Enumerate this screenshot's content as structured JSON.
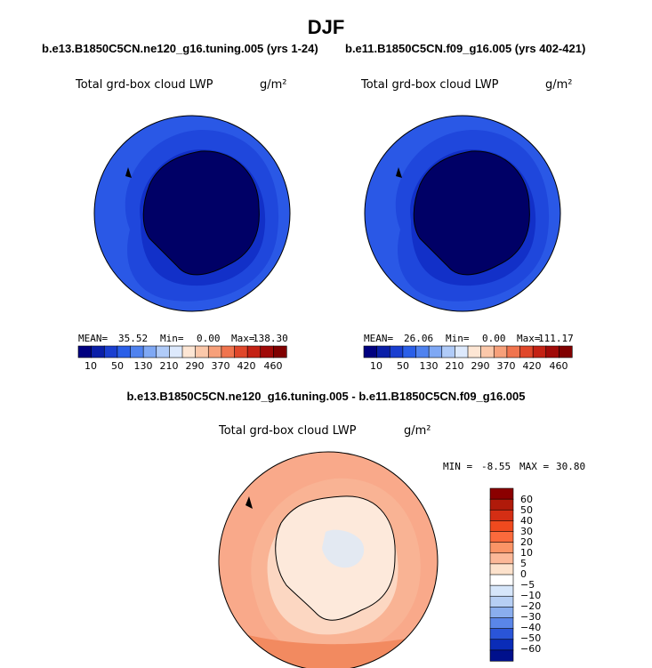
{
  "title": "DJF",
  "panels": [
    {
      "case": "b.e13.B1850C5CN.ne120_g16.tuning.005 (yrs 1-24)",
      "variable": "Total grd-box cloud LWP",
      "units": "g/m²",
      "mean_label": "MEAN=",
      "mean": "35.52",
      "min_label": "Min=",
      "min": "0.00",
      "max_label": "Max=",
      "max": "138.30"
    },
    {
      "case": "b.e11.B1850C5CN.f09_g16.005 (yrs 402-421)",
      "variable": "Total grd-box cloud LWP",
      "units": "g/m²",
      "mean_label": "MEAN=",
      "mean": "26.06",
      "min_label": "Min=",
      "min": "0.00",
      "max_label": "Max=",
      "max": "111.17"
    }
  ],
  "abs_colorbar": {
    "levels": [
      "10",
      "50",
      "130",
      "210",
      "290",
      "370",
      "420",
      "460"
    ],
    "colors": [
      "#000080",
      "#0a1fa8",
      "#1a3fd0",
      "#2a5fe8",
      "#4f82ef",
      "#7fa8f4",
      "#b0cbf8",
      "#dde9fc",
      "#fde6d4",
      "#fbc8aa",
      "#f7a07a",
      "#f0744e",
      "#e0472a",
      "#c42214",
      "#a00a08",
      "#800000"
    ]
  },
  "diff_panel": {
    "case": "b.e13.B1850C5CN.ne120_g16.tuning.005 - b.e11.B1850C5CN.f09_g16.005",
    "variable": "Total grd-box cloud LWP",
    "units": "g/m²",
    "min_label": "MIN =",
    "min": "-8.55",
    "max_label": "MAX =",
    "max": "30.80"
  },
  "diff_colorbar": {
    "levels": [
      "60",
      "50",
      "40",
      "30",
      "20",
      "10",
      "5",
      "0",
      "−5",
      "−10",
      "−20",
      "−30",
      "−40",
      "−50",
      "−60"
    ],
    "colors": [
      "#8b0000",
      "#b01a0a",
      "#d42e14",
      "#f04a1e",
      "#fb6a3c",
      "#fb9466",
      "#fcb898",
      "#fde2cc",
      "#ffffff",
      "#d6e6fa",
      "#b6cff4",
      "#8aaeee",
      "#5a86e8",
      "#2a55d8",
      "#0a2cb8",
      "#00108c"
    ]
  },
  "map_colors": {
    "land_top": "#000066",
    "ring_top_inner": "#1230c8",
    "ring_top_mid": "#1f47dc",
    "ring_top_outer": "#2a58e6",
    "diff_ocean": "#f9a98a",
    "diff_land": "#fde9db",
    "diff_light": "#fcd7c2",
    "diff_neg": "#dce9f8",
    "diff_strong": "#f28a60"
  }
}
